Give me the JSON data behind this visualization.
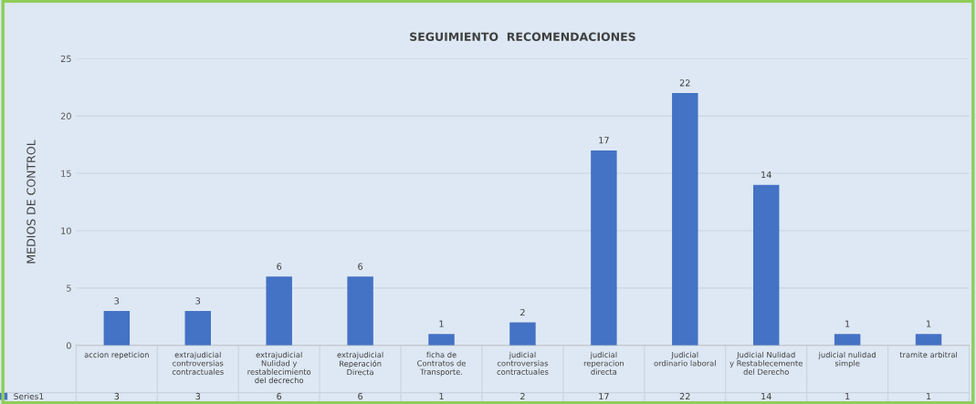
{
  "chart_data": {
    "type": "bar",
    "title": "SEGUIMIENTO  RECOMENDACIONES",
    "ylabel": "MEDIOS DE CONTROL",
    "categories": [
      "accion repeticion",
      "extrajudicial controversias contractuales",
      "extrajudicial Nulidad y restablecimiento del decrecho",
      "extrajudicial Reperación Directa",
      "ficha de Contratos de Transporte.",
      "judicial controversias contractuales",
      "judicial reperacion directa",
      "Judicial ordinario laboral",
      "Judicial Nulidad y Restablecemente del Derecho",
      "judicial nulidad simple",
      "tramite arbitral"
    ],
    "series": [
      {
        "name": "Series1",
        "color": "#4472c4",
        "values": [
          3,
          3,
          6,
          6,
          1,
          2,
          17,
          22,
          14,
          1,
          1
        ]
      }
    ],
    "annotations": [
      "3",
      "3",
      "6",
      "6",
      "1",
      "2",
      "17",
      "22",
      "14",
      "1",
      "1"
    ],
    "ylim": [
      0,
      25
    ],
    "yticks": [
      0,
      5,
      10,
      15,
      20,
      25
    ],
    "grid": "y",
    "data_labels": true,
    "legend": "bottom left"
  }
}
